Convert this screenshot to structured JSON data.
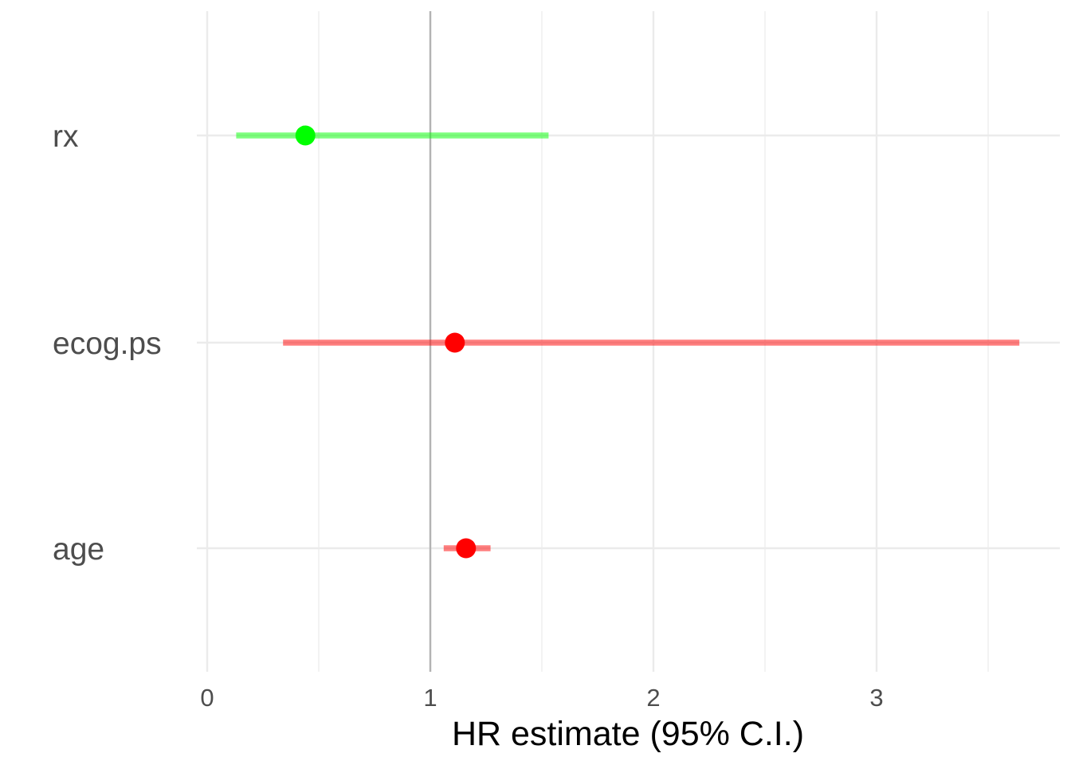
{
  "chart_data": {
    "type": "scatter",
    "subtype": "forest-plot",
    "title": "",
    "xlabel": "HR estimate (95% C.I.)",
    "ylabel": "",
    "xlim": [
      0,
      3.65
    ],
    "x_ticks": [
      0,
      1,
      2,
      3
    ],
    "x_minor_ticks": [
      0.5,
      1.5,
      2.5,
      3.5
    ],
    "reference_line_x": 1,
    "grid": true,
    "legend": "none",
    "categories": [
      "rx",
      "ecog.ps",
      "age"
    ],
    "series": [
      {
        "values": [
          {
            "label": "rx",
            "estimate": 0.44,
            "ci_lower": 0.13,
            "ci_upper": 1.53,
            "color": "#00ff00"
          },
          {
            "label": "ecog.ps",
            "estimate": 1.11,
            "ci_lower": 0.34,
            "ci_upper": 3.64,
            "color": "#ff0000"
          },
          {
            "label": "age",
            "estimate": 1.16,
            "ci_lower": 1.06,
            "ci_upper": 1.27,
            "color": "#ff0000"
          }
        ]
      }
    ],
    "colors": {
      "protective": "#00ff00",
      "risk": "#ff0000",
      "reference_line": "#b3b3b3",
      "grid": "#ebebeb",
      "text": "#4d4d4d"
    }
  }
}
